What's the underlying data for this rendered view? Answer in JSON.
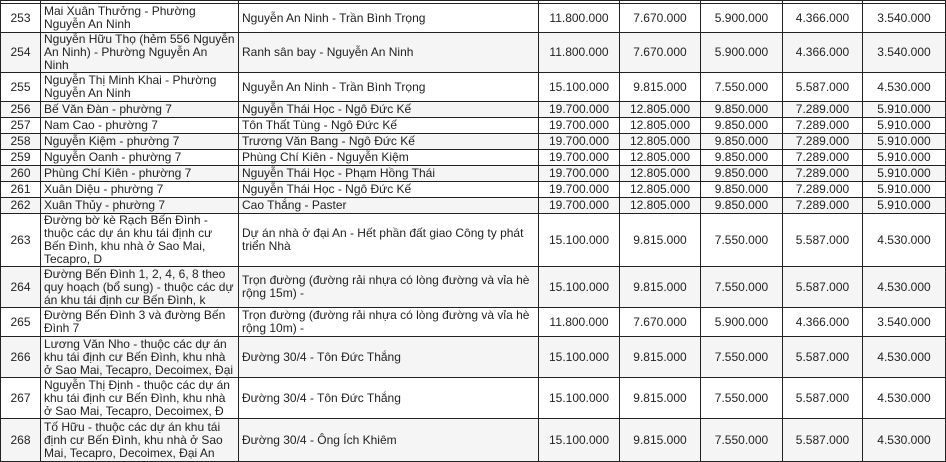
{
  "rows": [
    {
      "no": "253",
      "name": "Mai Xuân Thưởng - Phường Nguyễn An Ninh",
      "segment": "Nguyễn An Ninh - Trần Bình Trọng",
      "v": [
        "11.800.000",
        "7.670.000",
        "5.900.000",
        "4.366.000",
        "3.540.000"
      ]
    },
    {
      "no": "254",
      "name": "Nguyễn Hữu Thọ (hẻm 556 Nguyễn An Ninh) - Phường Nguyễn An Ninh",
      "segment": "Ranh sân bay - Nguyễn An Ninh",
      "v": [
        "11.800.000",
        "7.670.000",
        "5.900.000",
        "4.366.000",
        "3.540.000"
      ]
    },
    {
      "no": "255",
      "name": "Nguyễn Thị Minh Khai - Phường Nguyễn An Ninh",
      "segment": "Nguyễn An Ninh - Trần Bình Trọng",
      "v": [
        "15.100.000",
        "9.815.000",
        "7.550.000",
        "5.587.000",
        "4.530.000"
      ]
    },
    {
      "no": "256",
      "name": "Bế Văn Đàn - phường 7",
      "segment": "Nguyễn Thái Học - Ngô Đức Kế",
      "v": [
        "19.700.000",
        "12.805.000",
        "9.850.000",
        "7.289.000",
        "5.910.000"
      ]
    },
    {
      "no": "257",
      "name": "Nam Cao - phường 7",
      "segment": "Tôn Thất Tùng - Ngô Đức Kế",
      "v": [
        "19.700.000",
        "12.805.000",
        "9.850.000",
        "7.289.000",
        "5.910.000"
      ]
    },
    {
      "no": "258",
      "name": "Nguyễn Kiệm - phường 7",
      "segment": "Trương Văn Bang - Ngô Đức Kế",
      "v": [
        "19.700.000",
        "12.805.000",
        "9.850.000",
        "7.289.000",
        "5.910.000"
      ]
    },
    {
      "no": "259",
      "name": "Nguyễn Oanh - phường 7",
      "segment": "Phùng Chí Kiên - Nguyễn Kiệm",
      "v": [
        "19.700.000",
        "12.805.000",
        "9.850.000",
        "7.289.000",
        "5.910.000"
      ]
    },
    {
      "no": "260",
      "name": "Phùng Chí Kiên - phường 7",
      "segment": "Nguyễn Thái Học - Phạm Hồng Thái",
      "v": [
        "19.700.000",
        "12.805.000",
        "9.850.000",
        "7.289.000",
        "5.910.000"
      ]
    },
    {
      "no": "261",
      "name": "Xuân Diệu - phường 7",
      "segment": "Nguyễn Thái Học - Ngô Đức Kế",
      "v": [
        "19.700.000",
        "12.805.000",
        "9.850.000",
        "7.289.000",
        "5.910.000"
      ]
    },
    {
      "no": "262",
      "name": "Xuân Thủy - phường 7",
      "segment": "Cao Thắng - Paster",
      "v": [
        "19.700.000",
        "12.805.000",
        "9.850.000",
        "7.289.000",
        "5.910.000"
      ]
    },
    {
      "no": "263",
      "name": "Đường bờ kè Rạch Bến Đình - thuộc các dự án khu tái định cư Bến Đình, khu nhà ở Sao Mai, Tecapro, D",
      "segment": "Dự án nhà ở đại An - Hết phần đất giao Công ty phát triển Nhà",
      "v": [
        "15.100.000",
        "9.815.000",
        "7.550.000",
        "5.587.000",
        "4.530.000"
      ]
    },
    {
      "no": "264",
      "name": "Đường Bến Đình 1, 2, 4, 6, 8 theo quy hoạch (bổ sung) - thuộc các dự án khu tái định cư Bến Đình, k",
      "segment": "Trọn đường (đường rải nhựa có lòng đường và vỉa hè rộng 15m) -",
      "v": [
        "15.100.000",
        "9.815.000",
        "7.550.000",
        "5.587.000",
        "4.530.000"
      ]
    },
    {
      "no": "265",
      "name": "Đường Bến Đình 3 và đường Bến Đình 7",
      "segment": "Trọn đường (đường rải nhựa có lòng đường và vỉa hè rộng 10m) -",
      "v": [
        "11.800.000",
        "7.670.000",
        "5.900.000",
        "4.366.000",
        "3.540.000"
      ]
    },
    {
      "no": "266",
      "name": "Lương Văn Nho - thuộc các dự án khu tái định cư Bến Đình, khu nhà ở Sao Mai, Tecapro, Decoimex, Đại",
      "segment": "Đường 30/4 - Tôn Đức Thắng",
      "v": [
        "15.100.000",
        "9.815.000",
        "7.550.000",
        "5.587.000",
        "4.530.000"
      ]
    },
    {
      "no": "267",
      "name": "Nguyễn Thị Định - thuộc các dự án khu tái định cư Bến Đình, khu nhà ở Sao Mai, Tecapro, Decoimex, Đ",
      "segment": "Đường 30/4 - Tôn Đức Thắng",
      "v": [
        "15.100.000",
        "9.815.000",
        "7.550.000",
        "5.587.000",
        "4.530.000"
      ]
    },
    {
      "no": "268",
      "name": "Tố Hữu - thuộc các dự án khu tái định cư Bến Đình, khu nhà ở Sao Mai, Tecapro, Decoimex, Đại An",
      "segment": "Đường 30/4 - Ông Ích Khiêm",
      "v": [
        "15.100.000",
        "9.815.000",
        "7.550.000",
        "5.587.000",
        "4.530.000"
      ]
    }
  ]
}
